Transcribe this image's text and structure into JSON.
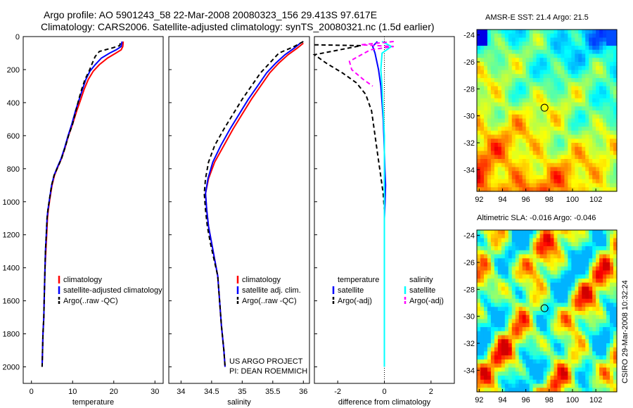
{
  "title": {
    "line1": "Argo profile: AO 5901243_58 22-Mar-2008 20080323_156 29.413S 97.617E",
    "line2": "Climatology: CARS2006. Satellite-adjusted climatology: synTS_20080321.nc (1.5d earlier)"
  },
  "colors": {
    "clim": "#ff0000",
    "sat": "#0000ff",
    "argo": "#000000",
    "sal_sat": "#00ffff",
    "sal_argo": "#ff00ff"
  },
  "chart_data": [
    {
      "type": "line",
      "id": "temp",
      "xlabel": "temperature",
      "xticks": [
        "0",
        "10",
        "20",
        "30"
      ],
      "xlim": [
        -2,
        32
      ],
      "yticks": [
        "0",
        "200",
        "400",
        "600",
        "800",
        "1000",
        "1200",
        "1400",
        "1600",
        "1800",
        "2000"
      ],
      "ylim": [
        0,
        2100
      ],
      "yreversed": true,
      "legend": [
        "climatology",
        "satellite-adjusted climatology",
        "Argo(..raw -QC)"
      ],
      "series": [
        {
          "name": "climatology",
          "color": "#ff0000",
          "dash": false,
          "x": [
            22.3,
            22.2,
            21.8,
            20.5,
            18.5,
            16.5,
            15,
            13.8,
            12.8,
            12,
            11,
            10,
            9,
            8.2,
            7.3,
            6.4,
            5.6,
            5,
            4.5,
            4.1,
            3.9,
            3.7,
            3.5,
            3.3,
            3.2,
            3.1,
            3.0,
            2.8,
            2.7,
            2.6
          ],
          "y": [
            30,
            60,
            80,
            100,
            130,
            170,
            210,
            260,
            320,
            380,
            450,
            530,
            600,
            670,
            740,
            790,
            840,
            900,
            980,
            1050,
            1100,
            1200,
            1300,
            1400,
            1500,
            1600,
            1700,
            1800,
            1900,
            2000
          ]
        },
        {
          "name": "satellite-adjusted climatology",
          "color": "#0000ff",
          "dash": false,
          "x": [
            22.0,
            21.8,
            20.6,
            19,
            17,
            15.5,
            14.2,
            13.2,
            12.4,
            11.6,
            10.7,
            9.8,
            8.9,
            8.1,
            7.2,
            6.3,
            5.5,
            4.9,
            4.4,
            4.0,
            3.8,
            3.6,
            3.4,
            3.3,
            3.2,
            3.1,
            3.0,
            2.8,
            2.7,
            2.6
          ],
          "y": [
            30,
            60,
            80,
            100,
            130,
            170,
            210,
            260,
            320,
            380,
            450,
            530,
            600,
            670,
            740,
            790,
            840,
            900,
            980,
            1050,
            1100,
            1200,
            1300,
            1400,
            1500,
            1600,
            1700,
            1800,
            1900,
            2000
          ]
        },
        {
          "name": "Argo(..raw -QC)",
          "color": "#000000",
          "dash": true,
          "x": [
            21.6,
            21.4,
            19.5,
            16.5,
            15.5,
            14.8,
            14,
            13,
            12.2,
            11.5,
            10.8,
            10,
            9,
            8.2,
            7.3,
            6.4,
            5.5,
            4.9,
            4.4,
            4.0,
            3.8,
            3.6,
            3.4,
            3.3,
            3.2,
            3.1,
            3.0,
            2.8,
            2.7,
            2.6
          ],
          "y": [
            40,
            55,
            70,
            90,
            120,
            160,
            210,
            260,
            320,
            380,
            450,
            530,
            600,
            670,
            740,
            790,
            840,
            900,
            980,
            1050,
            1100,
            1200,
            1300,
            1400,
            1500,
            1600,
            1700,
            1800,
            1900,
            2000
          ]
        }
      ]
    },
    {
      "type": "line",
      "id": "sal",
      "xlabel": "salinity",
      "xticks": [
        "34",
        "34.5",
        "35",
        "35.5",
        "36"
      ],
      "xlim": [
        33.8,
        36.1
      ],
      "yticks": [],
      "ylim": [
        0,
        2100
      ],
      "yreversed": true,
      "legend": [
        "climatology",
        "satellite adj. clim.",
        "Argo(..raw -QC)"
      ],
      "annotation": [
        "US ARGO PROJECT",
        "PI: DEAN ROEMMICH"
      ],
      "series": [
        {
          "name": "climatology",
          "color": "#ff0000",
          "dash": false,
          "x": [
            36.0,
            35.9,
            35.75,
            35.6,
            35.45,
            35.3,
            35.15,
            35.0,
            34.85,
            34.7,
            34.55,
            34.45,
            34.4,
            34.42,
            34.45,
            34.5,
            34.55,
            34.6,
            34.63,
            34.66,
            34.7,
            34.72
          ],
          "y": [
            40,
            70,
            110,
            160,
            220,
            300,
            380,
            470,
            560,
            660,
            760,
            860,
            950,
            1050,
            1150,
            1250,
            1350,
            1450,
            1600,
            1750,
            1900,
            2000
          ]
        },
        {
          "name": "satellite adj. clim.",
          "color": "#0000ff",
          "dash": false,
          "x": [
            35.95,
            35.85,
            35.7,
            35.55,
            35.4,
            35.25,
            35.1,
            34.95,
            34.8,
            34.65,
            34.52,
            34.44,
            34.4,
            34.42,
            34.45,
            34.5,
            34.55,
            34.6,
            34.63,
            34.66,
            34.7,
            34.72
          ],
          "y": [
            40,
            70,
            110,
            160,
            220,
            300,
            380,
            470,
            560,
            660,
            760,
            860,
            950,
            1050,
            1150,
            1250,
            1350,
            1450,
            1600,
            1750,
            1900,
            2000
          ]
        },
        {
          "name": "Argo(..raw -QC)",
          "color": "#000000",
          "dash": true,
          "x": [
            36.0,
            35.85,
            35.6,
            35.45,
            35.3,
            35.15,
            35.0,
            34.85,
            34.7,
            34.55,
            34.45,
            34.4,
            34.38,
            34.4,
            34.43,
            34.48,
            34.54,
            34.6,
            34.63,
            34.66,
            34.7,
            34.72
          ],
          "y": [
            30,
            60,
            100,
            160,
            220,
            300,
            380,
            470,
            560,
            660,
            760,
            860,
            950,
            1050,
            1150,
            1250,
            1350,
            1450,
            1600,
            1750,
            1900,
            2000
          ]
        }
      ]
    },
    {
      "type": "line",
      "id": "diff",
      "xlabel": "difference from climatology",
      "xticks": [
        "-2",
        "0",
        "2"
      ],
      "xlim": [
        -3,
        3
      ],
      "yticks": [],
      "ylim": [
        0,
        2100
      ],
      "yreversed": true,
      "legend_groups": [
        {
          "title": "temperature",
          "items": [
            "satellite",
            "Argo(-adj)"
          ]
        },
        {
          "title": "salinity",
          "items": [
            "satellite",
            "Argo(-adj)"
          ]
        }
      ],
      "series": [
        {
          "name": "satellite",
          "group": "temperature",
          "color": "#0000ff",
          "dash": false,
          "x": [
            -0.3,
            -0.5,
            -0.4,
            -0.25,
            -0.15,
            -0.1,
            -0.05,
            -0.02,
            0,
            0.02,
            0.05,
            0.03,
            0,
            0,
            0,
            0,
            0,
            0
          ],
          "y": [
            30,
            60,
            100,
            200,
            300,
            400,
            500,
            600,
            700,
            800,
            900,
            1000,
            1100,
            1300,
            1500,
            1700,
            1900,
            2000
          ]
        },
        {
          "name": "Argo(-adj)",
          "group": "temperature",
          "color": "#000000",
          "dash": true,
          "x": [
            -3.0,
            -1.0,
            -3.0,
            -2.5,
            -1.8,
            -1.2,
            -0.8,
            -0.55,
            -0.45,
            -0.3,
            -0.15,
            -0.05,
            0,
            0,
            0,
            0,
            0,
            0
          ],
          "y": [
            50,
            55,
            110,
            160,
            220,
            280,
            350,
            450,
            550,
            700,
            850,
            950,
            1050,
            1200,
            1400,
            1600,
            1800,
            2000
          ]
        },
        {
          "name": "satellite",
          "group": "salinity",
          "color": "#00ffff",
          "dash": false,
          "x": [
            -0.1,
            0.3,
            -0.1,
            -0.15,
            -0.1,
            -0.05,
            0,
            0,
            0,
            0,
            0,
            0,
            0
          ],
          "y": [
            30,
            60,
            100,
            200,
            300,
            450,
            600,
            800,
            1000,
            1300,
            1600,
            1800,
            2000
          ]
        },
        {
          "name": "Argo(-adj)",
          "group": "salinity",
          "color": "#ff00ff",
          "dash": true,
          "x": [
            0.4,
            -1.0,
            0.4,
            -0.6,
            -1.5,
            -1.4,
            -0.9,
            -0.5
          ],
          "y": [
            30,
            50,
            60,
            80,
            150,
            200,
            260,
            300
          ]
        }
      ]
    },
    {
      "type": "heatmap",
      "id": "sst",
      "title": "AMSR-E SST: 21.4 Argo: 21.5",
      "xticks": [
        "92",
        "94",
        "96",
        "98",
        "100",
        "102"
      ],
      "yticks": [
        "-24",
        "-26",
        "-28",
        "-30",
        "-32",
        "-34"
      ],
      "xlim": [
        91.8,
        103.8
      ],
      "ylim": [
        -35.6,
        -23.6
      ],
      "marker": [
        97.6,
        -29.4
      ]
    },
    {
      "type": "heatmap",
      "id": "sla",
      "title": "Altimetric SLA: -0.016 Argo: -0.046",
      "xticks": [
        "92",
        "94",
        "96",
        "98",
        "100",
        "102"
      ],
      "yticks": [
        "-24",
        "-26",
        "-28",
        "-30",
        "-32",
        "-34"
      ],
      "xlim": [
        91.8,
        103.8
      ],
      "ylim": [
        -35.6,
        -23.6
      ],
      "marker": [
        97.6,
        -29.4
      ]
    }
  ],
  "footer": {
    "stamp": "CSIRO 29-Mar-2008 10:32:24"
  }
}
